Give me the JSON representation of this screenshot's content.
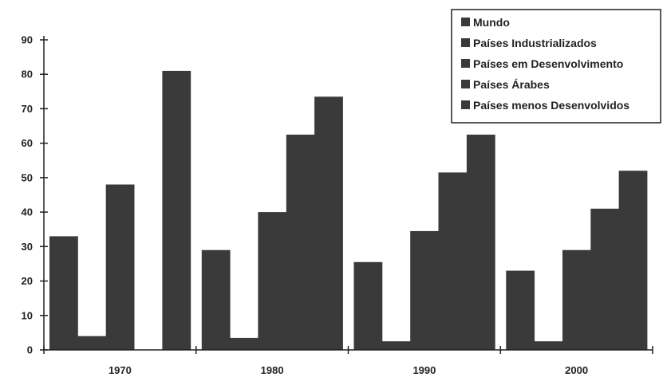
{
  "chart_data": {
    "type": "bar",
    "categories": [
      "1970",
      "1980",
      "1990",
      "2000"
    ],
    "series": [
      {
        "name": "Mundo",
        "values": [
          33,
          29,
          25.5,
          23
        ]
      },
      {
        "name": "Países Industrializados",
        "values": [
          4,
          3.5,
          2.5,
          2.5
        ]
      },
      {
        "name": "Países em Desenvolvimento",
        "values": [
          48,
          40,
          34.5,
          29
        ]
      },
      {
        "name": "Países Árabes",
        "values": [
          0,
          62.5,
          51.5,
          41
        ]
      },
      {
        "name": "Países menos Desenvolvidos",
        "values": [
          81,
          73.5,
          62.5,
          52
        ]
      }
    ],
    "yticks": [
      0,
      10,
      20,
      30,
      40,
      50,
      60,
      70,
      80,
      90
    ],
    "ylim": [
      0,
      90
    ],
    "legend_position": "top-right",
    "grid": false,
    "colors": {
      "bar": "#3a3a3a",
      "axis": "#222222",
      "legend_border": "#222222"
    }
  }
}
